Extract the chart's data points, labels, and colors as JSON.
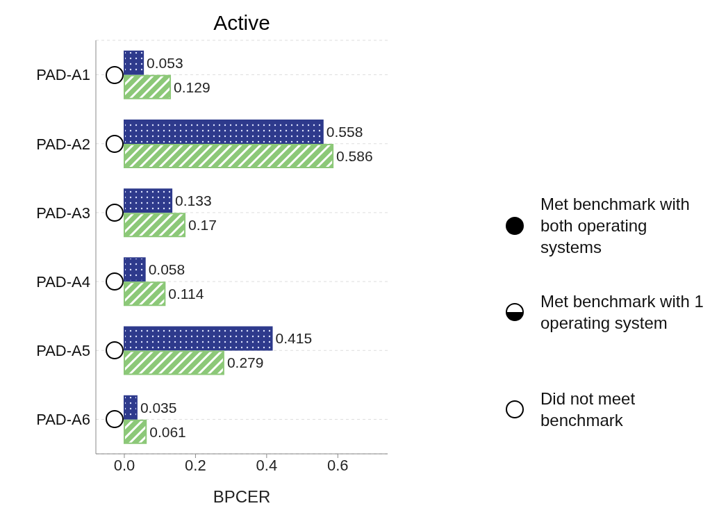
{
  "chart_data": {
    "type": "bar",
    "orientation": "horizontal",
    "title": "Active",
    "xlabel": "BPCER",
    "categories": [
      "PAD-A1",
      "PAD-A2",
      "PAD-A3",
      "PAD-A4",
      "PAD-A5",
      "PAD-A6"
    ],
    "series": [
      {
        "color": "#2e3a8c",
        "values": [
          0.053,
          0.558,
          0.133,
          0.058,
          0.415,
          0.035
        ]
      },
      {
        "color": "#8cc878",
        "values": [
          0.129,
          0.586,
          0.17,
          0.114,
          0.279,
          0.061
        ]
      }
    ],
    "xlim": [
      -0.08,
      0.74
    ],
    "xticks": [
      {
        "value": 0,
        "label": "0.0"
      },
      {
        "value": 0.2,
        "label": "0.2"
      },
      {
        "value": 0.4,
        "label": "0.4"
      },
      {
        "value": 0.6,
        "label": "0.6"
      }
    ],
    "data_labels": true,
    "grid": "y",
    "annotations": [
      "Met benchmark with both operating systems",
      "Met benchmark with 1 operating system",
      "Did not meet benchmark"
    ]
  }
}
